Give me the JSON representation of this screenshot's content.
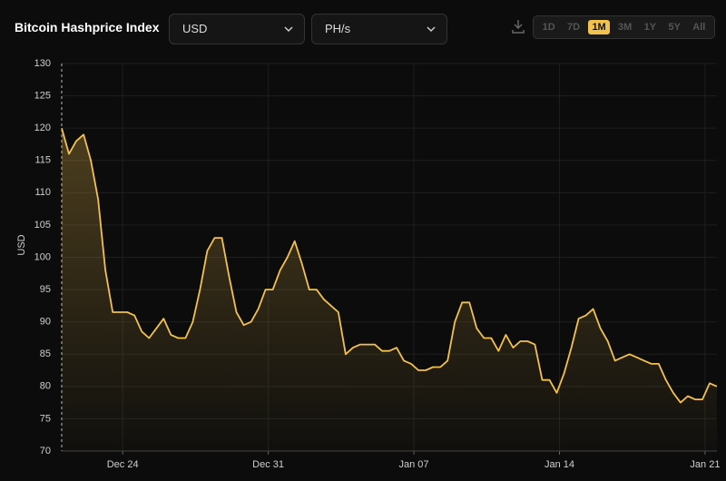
{
  "header": {
    "title": "Bitcoin Hashprice Index",
    "currency": "USD",
    "unit": "PH/s",
    "ranges": [
      "1D",
      "7D",
      "1M",
      "3M",
      "1Y",
      "5Y",
      "All"
    ],
    "selected_range": "1M"
  },
  "chart_data": {
    "type": "line",
    "y_label": "USD",
    "color": "#f2c14e",
    "grid": true,
    "x": [
      0,
      0.35,
      0.7,
      1.05,
      1.4,
      1.75,
      2.1,
      2.45,
      2.8,
      3.15,
      3.5,
      3.85,
      4.2,
      4.55,
      4.9,
      5.25,
      5.6,
      5.95,
      6.3,
      6.65,
      7,
      7.35,
      7.7,
      8.05,
      8.4,
      8.75,
      9.1,
      9.45,
      9.8,
      10.15,
      10.5,
      10.85,
      11.2,
      11.55,
      11.9,
      12.25,
      12.6,
      12.95,
      13.3,
      13.65,
      14,
      14.35,
      14.7,
      15.05,
      15.4,
      15.75,
      16.1,
      16.45,
      16.8,
      17.15,
      17.5,
      17.85,
      18.2,
      18.55,
      18.9,
      19.25,
      19.6,
      19.95,
      20.3,
      20.65,
      21,
      21.35,
      21.7,
      22.05,
      22.4,
      22.75,
      23.1,
      23.45,
      23.8,
      24.15,
      24.5,
      24.85,
      25.2,
      25.55,
      25.9,
      26.25,
      26.6,
      26.95,
      27.3,
      27.65,
      28,
      28.35,
      28.7,
      29.05,
      29.4,
      29.75,
      30.1,
      30.45,
      30.8,
      31.15,
      31.5
    ],
    "values": [
      120,
      116,
      118,
      119,
      115,
      109,
      98,
      91.5,
      91.5,
      91.5,
      91,
      88.5,
      87.5,
      89,
      90.5,
      88,
      87.5,
      87.5,
      90,
      95,
      101,
      103,
      103,
      97,
      91.5,
      89.5,
      90,
      92,
      95,
      95,
      98,
      100,
      102.5,
      99,
      95,
      95,
      93.5,
      92.5,
      91.5,
      85,
      86,
      86.5,
      86.5,
      86.5,
      85.5,
      85.5,
      86,
      84,
      83.5,
      82.5,
      82.5,
      83,
      83,
      84,
      90,
      93,
      93,
      89,
      87.5,
      87.5,
      85.5,
      88,
      86,
      87,
      87,
      86.5,
      81,
      81,
      79,
      82,
      86,
      90.5,
      91,
      92,
      89,
      87,
      84,
      84.5,
      85,
      84.5,
      84,
      83.5,
      83.5,
      81,
      79,
      77.5,
      78.5,
      78,
      78,
      80.5,
      80
    ],
    "xlim": [
      0,
      31.5
    ],
    "xticks": [
      {
        "value": 2.93,
        "label": "Dec 24"
      },
      {
        "value": 9.93,
        "label": "Dec 31"
      },
      {
        "value": 16.93,
        "label": "Jan 07"
      },
      {
        "value": 23.93,
        "label": "Jan 14"
      },
      {
        "value": 30.93,
        "label": "Jan 21"
      }
    ],
    "ylim": [
      70,
      130
    ],
    "yticks": [
      70,
      75,
      80,
      85,
      90,
      95,
      100,
      105,
      110,
      115,
      120,
      125,
      130
    ]
  }
}
